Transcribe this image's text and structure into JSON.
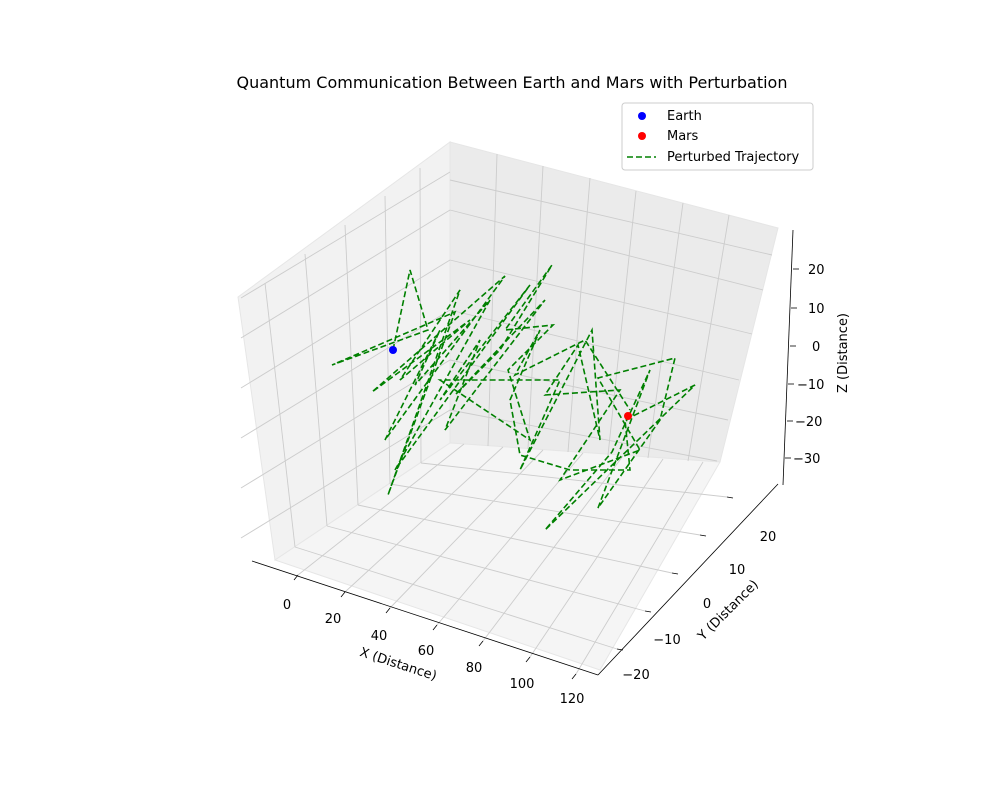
{
  "chart_data": {
    "type": "scatter3d-line",
    "title": "Quantum Communication Between Earth and Mars with Perturbation",
    "axes": {
      "x": {
        "label": "X (Distance)",
        "ticks": [
          "0",
          "20",
          "40",
          "60",
          "80",
          "100",
          "120"
        ]
      },
      "y": {
        "label": "Y (Distance)",
        "ticks": [
          "−20",
          "−10",
          "0",
          "10",
          "20"
        ]
      },
      "z": {
        "label": "Z (Distance)",
        "ticks": [
          "−30",
          "−20",
          "−10",
          "0",
          "10",
          "20"
        ]
      }
    },
    "legend": {
      "position": "top-right",
      "entries": [
        {
          "label": "Earth",
          "marker": "dot",
          "color": "#0000ff"
        },
        {
          "label": "Mars",
          "marker": "dot",
          "color": "#ff0000"
        },
        {
          "label": "Perturbed Trajectory",
          "marker": "dashed-line",
          "color": "#008000"
        }
      ]
    },
    "series": [
      {
        "name": "Earth",
        "type": "scatter",
        "x": 0,
        "y": 0,
        "z": 0
      },
      {
        "name": "Mars",
        "type": "scatter",
        "x": 100,
        "y": 0,
        "z": -10
      },
      {
        "name": "Perturbed Trajectory",
        "type": "line",
        "note": "straight path from Earth to Mars with random perturbations (zig-zag, approx 100 points)"
      }
    ]
  },
  "colors": {
    "earth": "#0000ff",
    "mars": "#ff0000",
    "trajectory": "#008000",
    "pane_left": "#f2f2f2",
    "pane_back": "#ebebeb",
    "pane_floor": "#f5f5f5",
    "grid": "#cccccc"
  }
}
